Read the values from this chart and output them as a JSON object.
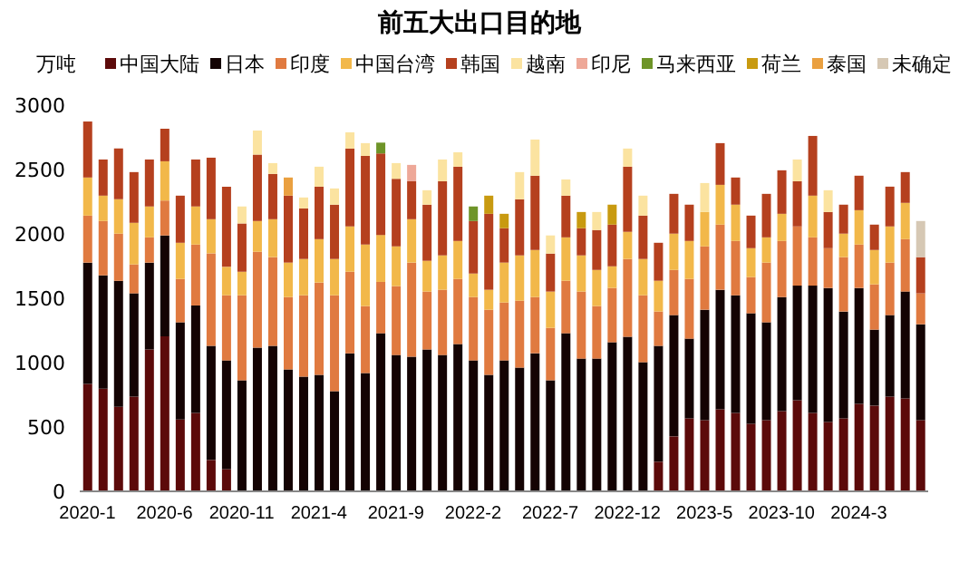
{
  "chart_data": {
    "type": "bar",
    "title": "前五大出口目的地",
    "ylabel": "万吨",
    "stacked": true,
    "legend": "top",
    "grid": false,
    "categories": [
      "2020-1",
      null,
      null,
      null,
      null,
      "2020-6",
      null,
      null,
      null,
      null,
      "2020-11",
      null,
      null,
      null,
      null,
      "2021-4",
      null,
      null,
      null,
      null,
      "2021-9",
      null,
      null,
      null,
      null,
      "2022-2",
      null,
      null,
      null,
      null,
      "2022-7",
      null,
      null,
      null,
      null,
      "2022-12",
      null,
      null,
      null,
      null,
      "2023-5",
      null,
      null,
      null,
      null,
      "2023-10",
      null,
      null,
      null,
      null,
      "2024-3",
      null,
      null,
      null,
      null
    ],
    "ylim": [
      0,
      3000
    ],
    "yticks": [
      0,
      500,
      1000,
      1500,
      2000,
      2500,
      3000
    ],
    "series": [
      {
        "name": "中国大陆",
        "color": "#5c0a0a",
        "values": [
          834,
          797,
          656,
          736,
          1102,
          1205,
          558,
          609,
          244,
          173,
          0,
          0,
          0,
          0,
          0,
          0,
          0,
          0,
          0,
          0,
          0,
          0,
          0,
          0,
          0,
          0,
          0,
          0,
          0,
          0,
          0,
          0,
          0,
          0,
          0,
          0,
          0,
          230,
          427,
          567,
          553,
          638,
          609,
          525,
          553,
          623,
          708,
          609,
          539,
          567,
          680,
          666,
          736,
          722,
          553
        ]
      },
      {
        "name": "日本",
        "color": "#140303",
        "values": [
          943,
          881,
          980,
          802,
          675,
          783,
          755,
          835,
          886,
          844,
          863,
          1116,
          1130,
          947,
          891,
          905,
          778,
          1073,
          919,
          1228,
          1059,
          1045,
          1102,
          1059,
          1144,
          1017,
          905,
          1017,
          961,
          1073,
          863,
          1228,
          1031,
          1031,
          1158,
          1200,
          1003,
          900,
          942,
          619,
          858,
          928,
          914,
          858,
          760,
          886,
          890,
          989,
          1041,
          830,
          900,
          590,
          633,
          830,
          745
        ]
      },
      {
        "name": "印度",
        "color": "#e07a40",
        "values": [
          365,
          422,
          366,
          225,
          196,
          271,
          337,
          473,
          719,
          506,
          660,
          745,
          689,
          562,
          632,
          717,
          745,
          633,
          520,
          399,
          535,
          732,
          450,
          507,
          506,
          492,
          506,
          450,
          520,
          436,
          407,
          408,
          521,
          408,
          422,
          605,
          520,
          267,
          351,
          464,
          492,
          506,
          422,
          281,
          464,
          436,
          460,
          375,
          309,
          422,
          337,
          352,
          408,
          407,
          240
        ]
      },
      {
        "name": "中国台湾",
        "color": "#f2b84a",
        "values": [
          296,
          197,
          267,
          323,
          240,
          305,
          281,
          296,
          265,
          221,
          183,
          239,
          295,
          268,
          282,
          337,
          282,
          352,
          478,
          365,
          309,
          337,
          239,
          267,
          295,
          183,
          155,
          310,
          352,
          366,
          282,
          337,
          281,
          281,
          168,
          211,
          282,
          239,
          282,
          295,
          267,
          309,
          282,
          225,
          196,
          211,
          0,
          324,
          0,
          183,
          267,
          267,
          281,
          282,
          0
        ]
      },
      {
        "name": "韩国",
        "color": "#b5401e",
        "values": [
          435,
          281,
          394,
          394,
          365,
          253,
          366,
          365,
          478,
          623,
          375,
          516,
          352,
          520,
          393,
          408,
          422,
          605,
          689,
          633,
          525,
          295,
          436,
          576,
          577,
          408,
          590,
          267,
          436,
          577,
          295,
          324,
          211,
          310,
          324,
          506,
          337,
          295,
          309,
          282,
          0,
          324,
          211,
          253,
          338,
          338,
          351,
          464,
          281,
          225,
          268,
          197,
          309,
          239,
          281
        ]
      },
      {
        "name": "越南",
        "color": "#fbe3a0",
        "values": [
          0,
          0,
          0,
          0,
          0,
          0,
          0,
          0,
          0,
          0,
          132,
          187,
          84,
          0,
          85,
          155,
          126,
          126,
          99,
          0,
          122,
          0,
          112,
          169,
          112,
          0,
          0,
          0,
          211,
          281,
          141,
          126,
          0,
          140,
          0,
          141,
          155,
          0,
          0,
          0,
          225,
          0,
          0,
          0,
          0,
          0,
          169,
          0,
          169,
          0,
          0,
          0,
          0,
          0,
          0
        ]
      },
      {
        "name": "印尼",
        "color": "#eea898",
        "values": [
          0,
          0,
          0,
          0,
          0,
          0,
          0,
          0,
          0,
          0,
          0,
          0,
          0,
          0,
          0,
          0,
          0,
          0,
          0,
          0,
          0,
          127,
          0,
          0,
          0,
          0,
          0,
          0,
          0,
          0,
          0,
          0,
          0,
          0,
          0,
          0,
          0,
          0,
          0,
          0,
          0,
          0,
          0,
          0,
          0,
          0,
          0,
          0,
          0,
          0,
          0,
          0,
          0,
          0,
          0
        ]
      },
      {
        "name": "马来西亚",
        "color": "#6e9428",
        "values": [
          0,
          0,
          0,
          0,
          0,
          0,
          0,
          0,
          0,
          0,
          0,
          0,
          0,
          0,
          0,
          0,
          0,
          0,
          0,
          84,
          0,
          0,
          0,
          0,
          0,
          113,
          0,
          0,
          0,
          0,
          0,
          0,
          0,
          0,
          0,
          0,
          0,
          0,
          0,
          0,
          0,
          0,
          0,
          0,
          0,
          0,
          0,
          0,
          0,
          0,
          0,
          0,
          0,
          0,
          0
        ]
      },
      {
        "name": "荷兰",
        "color": "#c89a10",
        "values": [
          0,
          0,
          0,
          0,
          0,
          0,
          0,
          0,
          0,
          0,
          0,
          0,
          0,
          0,
          0,
          0,
          0,
          0,
          0,
          0,
          0,
          0,
          0,
          0,
          0,
          0,
          141,
          112,
          0,
          0,
          0,
          0,
          126,
          0,
          155,
          0,
          0,
          0,
          0,
          0,
          0,
          0,
          0,
          0,
          0,
          0,
          0,
          0,
          0,
          0,
          0,
          0,
          0,
          0,
          0
        ]
      },
      {
        "name": "泰国",
        "color": "#eaa040",
        "values": [
          0,
          0,
          0,
          0,
          0,
          0,
          0,
          0,
          0,
          0,
          0,
          0,
          0,
          141,
          0,
          0,
          0,
          0,
          0,
          0,
          0,
          0,
          0,
          0,
          0,
          0,
          0,
          0,
          0,
          0,
          0,
          0,
          0,
          0,
          0,
          0,
          0,
          0,
          0,
          0,
          0,
          0,
          0,
          0,
          0,
          0,
          0,
          0,
          0,
          0,
          0,
          0,
          0,
          0,
          0
        ]
      },
      {
        "name": "未确定",
        "color": "#d6c8b4",
        "values": [
          0,
          0,
          0,
          0,
          0,
          0,
          0,
          0,
          0,
          0,
          0,
          0,
          0,
          0,
          0,
          0,
          0,
          0,
          0,
          0,
          0,
          0,
          0,
          0,
          0,
          0,
          0,
          0,
          0,
          0,
          0,
          0,
          0,
          0,
          0,
          0,
          0,
          0,
          0,
          0,
          0,
          0,
          0,
          0,
          0,
          0,
          0,
          0,
          0,
          0,
          0,
          0,
          0,
          0,
          281
        ]
      }
    ]
  }
}
